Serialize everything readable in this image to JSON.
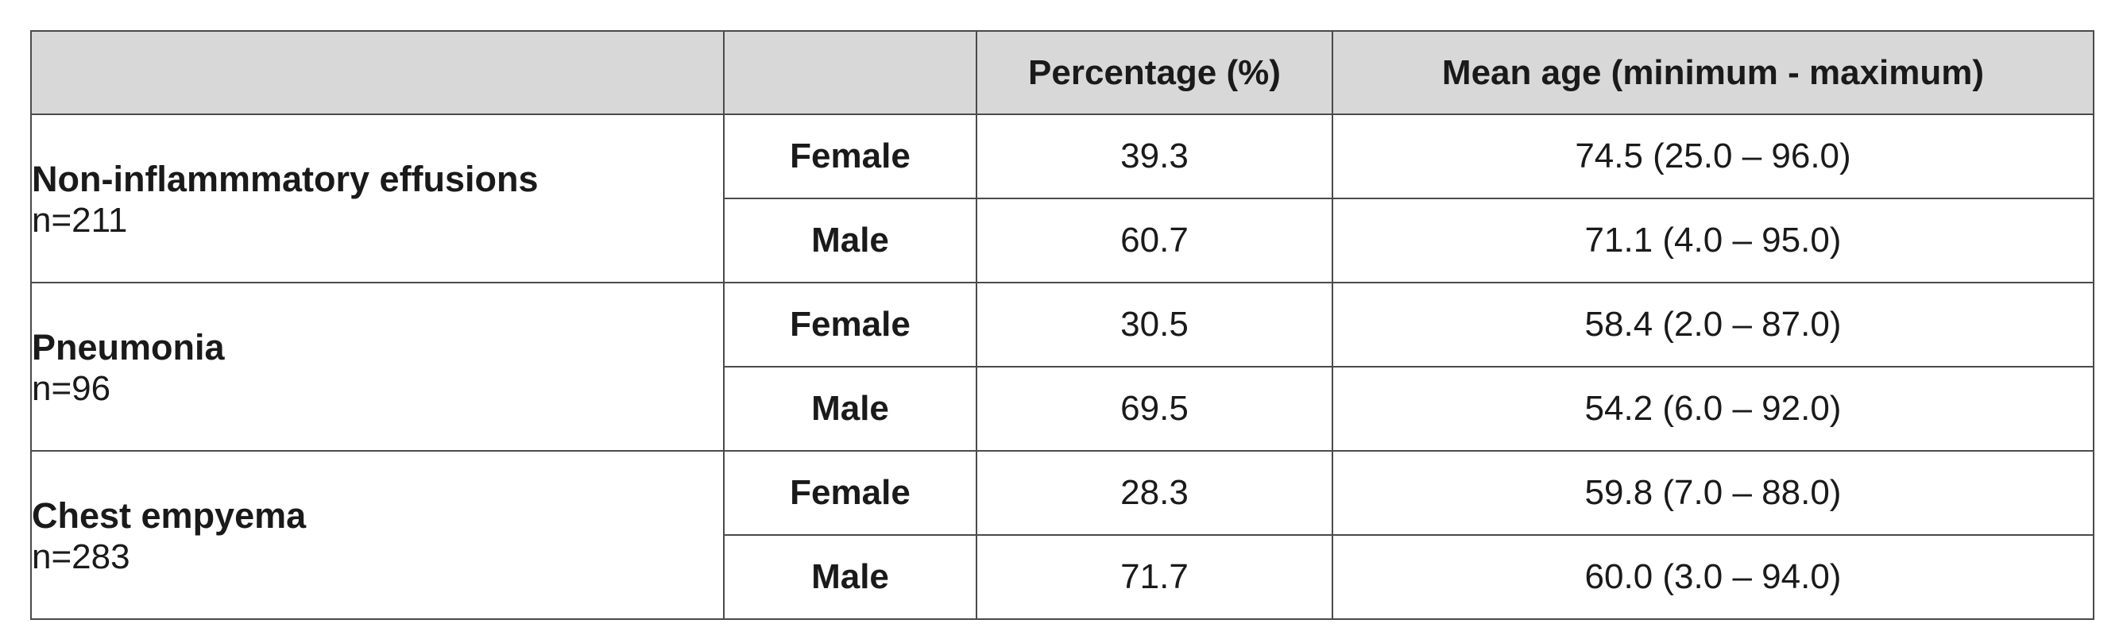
{
  "table": {
    "headers": [
      "",
      "",
      "Percentage (%)",
      "Mean age (minimum - maximum)"
    ],
    "groups": [
      {
        "name": "Non-inflammmatory effusions",
        "n": "n=211",
        "rows": [
          {
            "sex": "Female",
            "percentage": "39.3",
            "mean_age": "74.5 (25.0 – 96.0)"
          },
          {
            "sex": "Male",
            "percentage": "60.7",
            "mean_age": "71.1 (4.0 – 95.0)"
          }
        ]
      },
      {
        "name": "Pneumonia",
        "n": "n=96",
        "rows": [
          {
            "sex": "Female",
            "percentage": "30.5",
            "mean_age": "58.4 (2.0 – 87.0)"
          },
          {
            "sex": "Male",
            "percentage": "69.5",
            "mean_age": "54.2 (6.0 – 92.0)"
          }
        ]
      },
      {
        "name": "Chest empyema",
        "n": "n=283",
        "rows": [
          {
            "sex": "Female",
            "percentage": "28.3",
            "mean_age": "59.8 (7.0 – 88.0)"
          },
          {
            "sex": "Male",
            "percentage": "71.7",
            "mean_age": "60.0 (3.0 – 94.0)"
          }
        ]
      }
    ],
    "colors": {
      "header_background": "#d8d8d8",
      "border": "#4a4a4a",
      "text": "#1a1a1a"
    }
  }
}
